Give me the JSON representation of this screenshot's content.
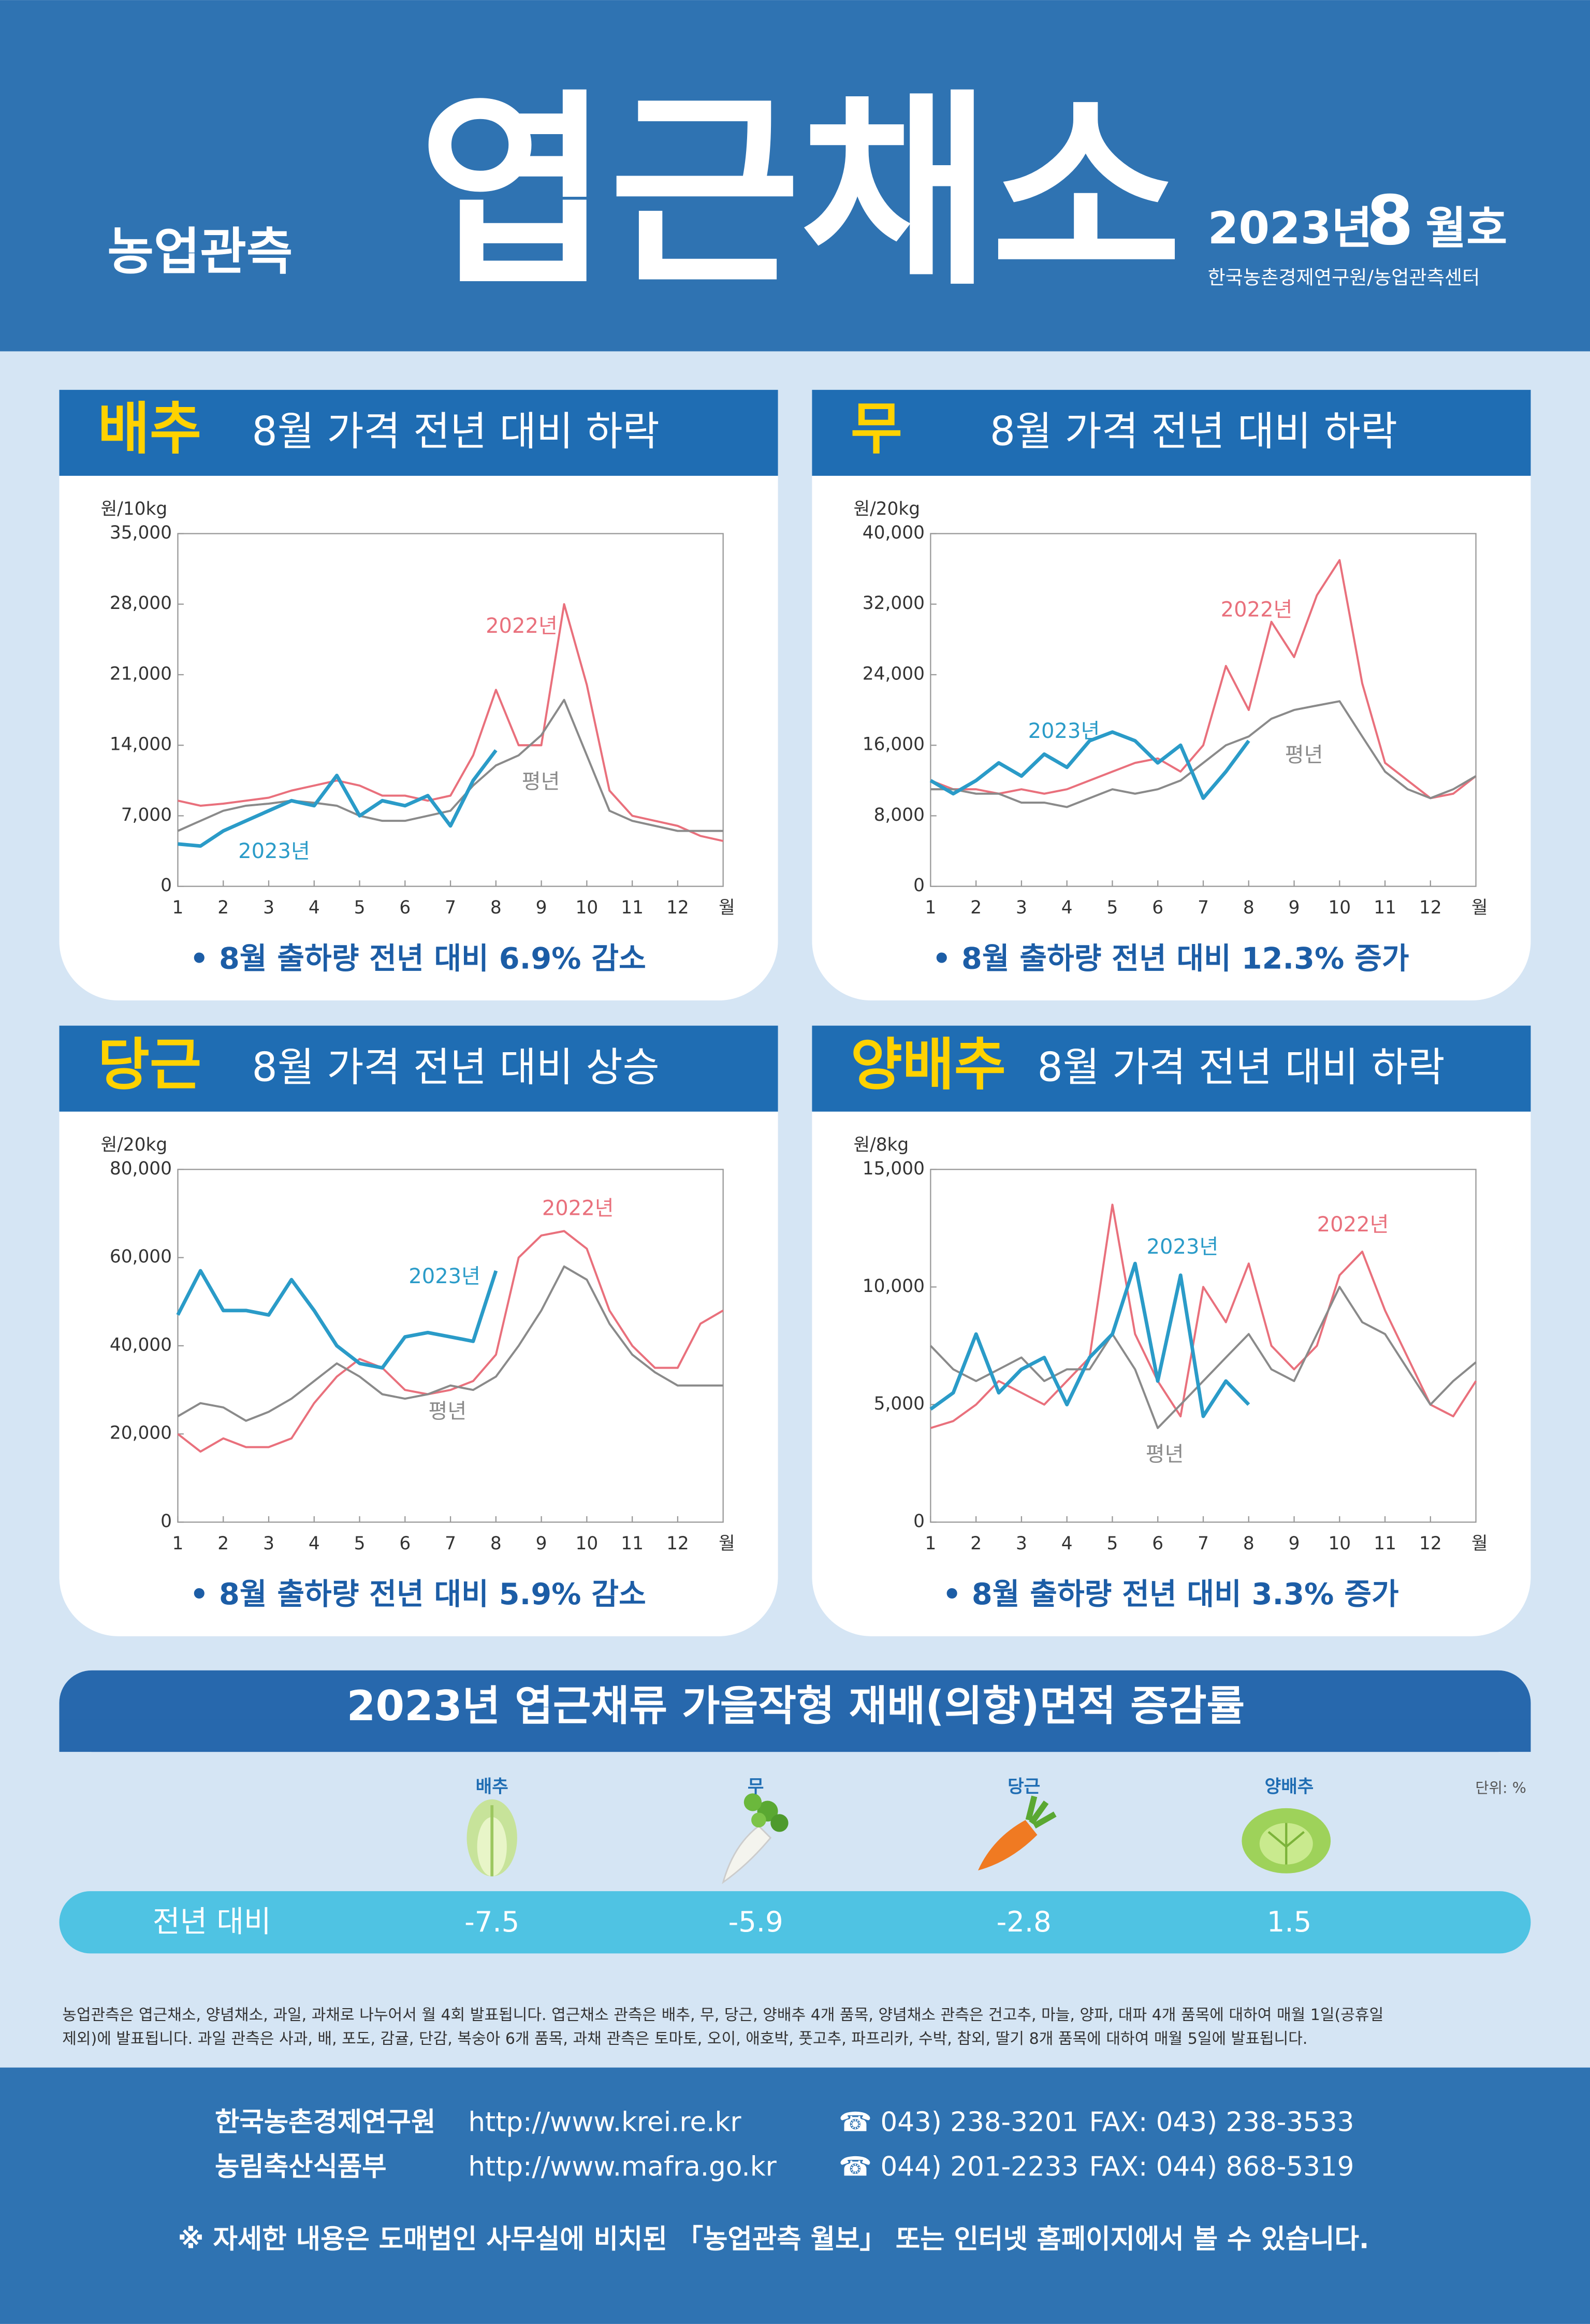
{
  "header": {
    "brand": "농업관측",
    "title": "엽근채소",
    "issue_year": "2023년",
    "issue_month": "8",
    "issue_suffix": "월호",
    "org": "한국농촌경제연구원/농업관측센터"
  },
  "panels": [
    {
      "name": "배추",
      "headline": "8월 가격 전년 대비 하락",
      "note": "• 8월 출하량 전년 대비 6.9% 감소",
      "chart": {
        "type": "line",
        "y_label": "원/10kg",
        "x_unit": "월",
        "xlim": [
          1,
          13
        ],
        "xticks": [
          1,
          2,
          3,
          4,
          5,
          6,
          7,
          8,
          9,
          10,
          11,
          12
        ],
        "ylim": [
          0,
          35000
        ],
        "yticks": [
          0,
          {
            "value": 7000,
            "label": "7,000"
          },
          {
            "value": 14000,
            "label": "14,000"
          },
          {
            "value": 21000,
            "label": "21,000"
          },
          {
            "value": 28000,
            "label": "28,000"
          },
          {
            "value": 35000,
            "label": "35,000"
          }
        ],
        "series": [
          {
            "name": "2022년",
            "color": "#e9707c",
            "x": [
              1,
              1.5,
              2,
              2.5,
              3,
              3.5,
              4,
              4.5,
              5,
              5.5,
              6,
              6.5,
              7,
              7.5,
              8,
              8.5,
              9,
              9.5,
              10,
              10.5,
              11,
              11.5,
              12,
              12.5,
              13
            ],
            "values": [
              8500,
              8000,
              8200,
              8500,
              8800,
              9500,
              10000,
              10500,
              10000,
              9000,
              9000,
              8500,
              9000,
              13000,
              19500,
              14000,
              14000,
              28000,
              20000,
              9500,
              7000,
              6500,
              6000,
              5000,
              4500
            ]
          },
          {
            "name": "평년",
            "color": "#8a8a8a",
            "x": [
              1,
              1.5,
              2,
              2.5,
              3,
              3.5,
              4,
              4.5,
              5,
              5.5,
              6,
              6.5,
              7,
              7.5,
              8,
              8.5,
              9,
              9.5,
              10,
              10.5,
              11,
              11.5,
              12,
              12.5,
              13
            ],
            "values": [
              5500,
              6500,
              7500,
              8000,
              8200,
              8500,
              8300,
              8000,
              7000,
              6500,
              6500,
              7000,
              7500,
              10000,
              12000,
              13000,
              15000,
              18500,
              13000,
              7500,
              6500,
              6000,
              5500,
              5500,
              5500
            ]
          },
          {
            "name": "2023년",
            "color": "#2a9bc8",
            "x": [
              1,
              1.5,
              2,
              2.5,
              3,
              3.5,
              4,
              4.5,
              5,
              5.5,
              6,
              6.5,
              7,
              7.5,
              8
            ],
            "values": [
              4200,
              4000,
              5500,
              6500,
              7500,
              8500,
              8000,
              11000,
              7000,
              8500,
              8000,
              9000,
              6000,
              10500,
              13500
            ]
          }
        ]
      }
    },
    {
      "name": "무",
      "headline": "8월 가격 전년 대비 하락",
      "note": "• 8월 출하량 전년 대비 12.3% 증가",
      "chart": {
        "type": "line",
        "y_label": "원/20kg",
        "x_unit": "월",
        "xlim": [
          1,
          13
        ],
        "xticks": [
          1,
          2,
          3,
          4,
          5,
          6,
          7,
          8,
          9,
          10,
          11,
          12
        ],
        "ylim": [
          0,
          40000
        ],
        "yticks": [
          0,
          {
            "value": 8000,
            "label": "8,000"
          },
          {
            "value": 16000,
            "label": "16,000"
          },
          {
            "value": 24000,
            "label": "24,000"
          },
          {
            "value": 32000,
            "label": "32,000"
          },
          {
            "value": 40000,
            "label": "40,000"
          }
        ],
        "series": [
          {
            "name": "2022년",
            "color": "#e9707c",
            "x": [
              1,
              1.5,
              2,
              2.5,
              3,
              3.5,
              4,
              4.5,
              5,
              5.5,
              6,
              6.5,
              7,
              7.5,
              8,
              8.5,
              9,
              9.5,
              10,
              10.5,
              11,
              11.5,
              12,
              12.5,
              13
            ],
            "values": [
              12000,
              11000,
              11000,
              10500,
              11000,
              10500,
              11000,
              12000,
              13000,
              14000,
              14500,
              13000,
              16000,
              25000,
              20000,
              30000,
              26000,
              33000,
              37000,
              23000,
              14000,
              12000,
              10000,
              10500,
              12500
            ]
          },
          {
            "name": "평년",
            "color": "#8a8a8a",
            "x": [
              1,
              1.5,
              2,
              2.5,
              3,
              3.5,
              4,
              4.5,
              5,
              5.5,
              6,
              6.5,
              7,
              7.5,
              8,
              8.5,
              9,
              9.5,
              10,
              10.5,
              11,
              11.5,
              12,
              12.5,
              13
            ],
            "values": [
              11000,
              11000,
              10500,
              10500,
              9500,
              9500,
              9000,
              10000,
              11000,
              10500,
              11000,
              12000,
              14000,
              16000,
              17000,
              19000,
              20000,
              20500,
              21000,
              17000,
              13000,
              11000,
              10000,
              11000,
              12500
            ]
          },
          {
            "name": "2023년",
            "color": "#2a9bc8",
            "x": [
              1,
              1.5,
              2,
              2.5,
              3,
              3.5,
              4,
              4.5,
              5,
              5.5,
              6,
              6.5,
              7,
              7.5,
              8
            ],
            "values": [
              12000,
              10500,
              12000,
              14000,
              12500,
              15000,
              13500,
              16500,
              17500,
              16500,
              14000,
              16000,
              10000,
              13000,
              16500
            ]
          }
        ]
      }
    },
    {
      "name": "당근",
      "headline": "8월 가격 전년 대비 상승",
      "note": "• 8월 출하량 전년 대비 5.9% 감소",
      "chart": {
        "type": "line",
        "y_label": "원/20kg",
        "x_unit": "월",
        "xlim": [
          1,
          13
        ],
        "xticks": [
          1,
          2,
          3,
          4,
          5,
          6,
          7,
          8,
          9,
          10,
          11,
          12
        ],
        "ylim": [
          0,
          80000
        ],
        "yticks": [
          0,
          {
            "value": 20000,
            "label": "20,000"
          },
          {
            "value": 40000,
            "label": "40,000"
          },
          {
            "value": 60000,
            "label": "60,000"
          },
          {
            "value": 80000,
            "label": "80,000"
          }
        ],
        "series": [
          {
            "name": "2022년",
            "color": "#e9707c",
            "x": [
              1,
              1.5,
              2,
              2.5,
              3,
              3.5,
              4,
              4.5,
              5,
              5.5,
              6,
              6.5,
              7,
              7.5,
              8,
              8.5,
              9,
              9.5,
              10,
              10.5,
              11,
              11.5,
              12,
              12.5,
              13
            ],
            "values": [
              20000,
              16000,
              19000,
              17000,
              17000,
              19000,
              27000,
              33000,
              37000,
              35000,
              30000,
              29000,
              30000,
              32000,
              38000,
              60000,
              65000,
              66000,
              62000,
              48000,
              40000,
              35000,
              35000,
              45000,
              48000
            ]
          },
          {
            "name": "평년",
            "color": "#8a8a8a",
            "x": [
              1,
              1.5,
              2,
              2.5,
              3,
              3.5,
              4,
              4.5,
              5,
              5.5,
              6,
              6.5,
              7,
              7.5,
              8,
              8.5,
              9,
              9.5,
              10,
              10.5,
              11,
              11.5,
              12,
              12.5,
              13
            ],
            "values": [
              24000,
              27000,
              26000,
              23000,
              25000,
              28000,
              32000,
              36000,
              33000,
              29000,
              28000,
              29000,
              31000,
              30000,
              33000,
              40000,
              48000,
              58000,
              55000,
              45000,
              38000,
              34000,
              31000,
              31000,
              31000
            ]
          },
          {
            "name": "2023년",
            "color": "#2a9bc8",
            "x": [
              1,
              1.5,
              2,
              2.5,
              3,
              3.5,
              4,
              4.5,
              5,
              5.5,
              6,
              6.5,
              7,
              7.5,
              8
            ],
            "values": [
              47000,
              57000,
              48000,
              48000,
              47000,
              55000,
              48000,
              40000,
              36000,
              35000,
              42000,
              43000,
              42000,
              41000,
              57000
            ]
          }
        ]
      }
    },
    {
      "name": "양배추",
      "headline": "8월 가격 전년 대비 하락",
      "note": "• 8월 출하량 전년 대비 3.3% 증가",
      "chart": {
        "type": "line",
        "y_label": "원/8kg",
        "x_unit": "월",
        "xlim": [
          1,
          13
        ],
        "xticks": [
          1,
          2,
          3,
          4,
          5,
          6,
          7,
          8,
          9,
          10,
          11,
          12
        ],
        "ylim": [
          0,
          15000
        ],
        "yticks": [
          0,
          {
            "value": 5000,
            "label": "5,000"
          },
          {
            "value": 10000,
            "label": "10,000"
          },
          {
            "value": 15000,
            "label": "15,000"
          }
        ],
        "series": [
          {
            "name": "2022년",
            "color": "#e9707c",
            "x": [
              1,
              1.5,
              2,
              2.5,
              3,
              3.5,
              4,
              4.5,
              5,
              5.5,
              6,
              6.5,
              7,
              7.5,
              8,
              8.5,
              9,
              9.5,
              10,
              10.5,
              11,
              11.5,
              12,
              12.5,
              13
            ],
            "values": [
              4000,
              4300,
              5000,
              6000,
              5500,
              5000,
              6000,
              7000,
              13500,
              8000,
              6000,
              4500,
              10000,
              8500,
              11000,
              7500,
              6500,
              7500,
              10500,
              11500,
              9000,
              7000,
              5000,
              4500,
              6000
            ]
          },
          {
            "name": "평년",
            "color": "#8a8a8a",
            "x": [
              1,
              1.5,
              2,
              2.5,
              3,
              3.5,
              4,
              4.5,
              5,
              5.5,
              6,
              6.5,
              7,
              7.5,
              8,
              8.5,
              9,
              9.5,
              10,
              10.5,
              11,
              11.5,
              12,
              12.5,
              13
            ],
            "values": [
              7500,
              6500,
              6000,
              6500,
              7000,
              6000,
              6500,
              6500,
              8000,
              6500,
              4000,
              5000,
              6000,
              7000,
              8000,
              6500,
              6000,
              8000,
              10000,
              8500,
              8000,
              6500,
              5000,
              6000,
              6800
            ]
          },
          {
            "name": "2023년",
            "color": "#2a9bc8",
            "x": [
              1,
              1.5,
              2,
              2.5,
              3,
              3.5,
              4,
              4.5,
              5,
              5.5,
              6,
              6.5,
              7,
              7.5,
              8
            ],
            "values": [
              4800,
              5500,
              8000,
              5500,
              6500,
              7000,
              5000,
              7000,
              8000,
              11000,
              6000,
              10500,
              4500,
              6000,
              5000
            ]
          }
        ]
      }
    }
  ],
  "area": {
    "title": "2023년 엽근채류 가을작형 재배(의향)면적 증감률",
    "unit": "단위: %",
    "row_label": "전년 대비",
    "items": [
      "배추",
      "무",
      "당근",
      "양배추"
    ],
    "values": [
      -7.5,
      -5.9,
      -2.8,
      1.5
    ]
  },
  "footnote": [
    "농업관측은 엽근채소, 양념채소, 과일, 과채로 나누어서 월 4회 발표됩니다. 엽근채소 관측은 배추, 무, 당근, 양배추 4개 품목, 양념채소 관측은 건고추, 마늘, 양파, 대파 4개 품목에 대하여 매월 1일(공휴일",
    "제외)에 발표됩니다. 과일 관측은 사과, 배, 포도, 감귤, 단감, 복숭아 6개 품목, 과채 관측은 토마토, 오이, 애호박, 풋고추, 파프리카, 수박, 참외, 딸기 8개 품목에 대하여 매월 5일에 발표됩니다."
  ],
  "contacts": [
    {
      "org": "한국농촌경제연구원",
      "url": "http://www.krei.re.kr",
      "phone": "☎ 043) 238-3201",
      "fax": "FAX: 043) 238-3533"
    },
    {
      "org": "농림축산식품부",
      "url": "http://www.mafra.go.kr",
      "phone": "☎ 044) 201-2233",
      "fax": "FAX: 044) 868-5319"
    }
  ],
  "closing": "※ 자세한 내용은 도매법인 사무실에 비치된 「농업관측 월보」 또는 인터넷 홈페이지에서 볼 수 있습니다."
}
